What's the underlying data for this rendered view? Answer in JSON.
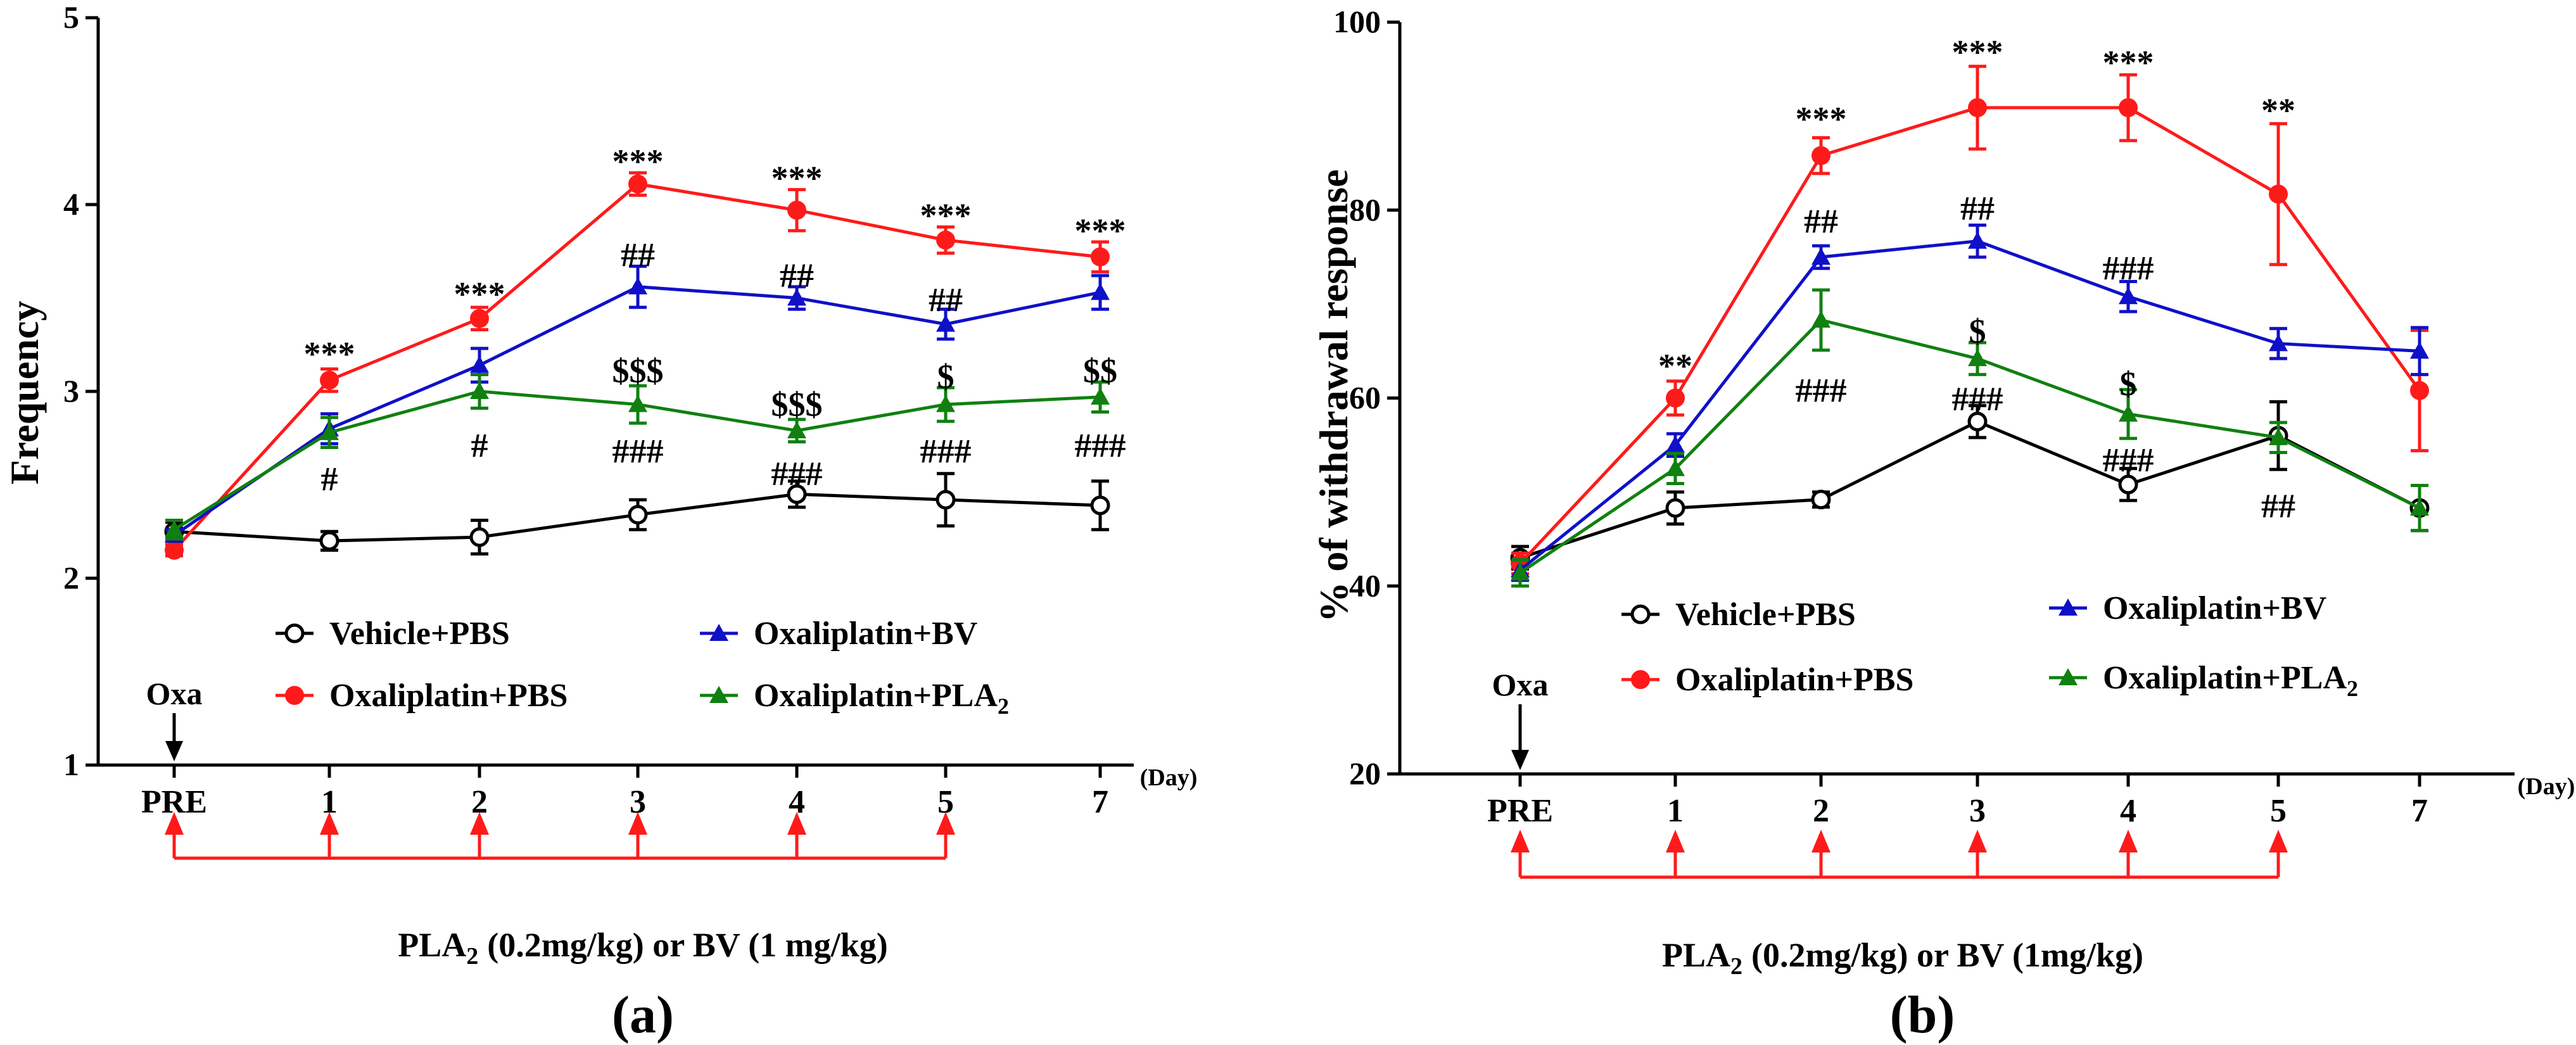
{
  "colors": {
    "vehicle": "#000000",
    "oxa_pbs": "#ff1a1a",
    "oxa_bv": "#1010c8",
    "oxa_pla2": "#108010",
    "treatment_arrow": "#ff1a1a"
  },
  "chart_data": [
    {
      "type": "line",
      "panel_label": "(a)",
      "ylabel": "Frequency",
      "xlabel_unit": "(Day)",
      "categories": [
        "PRE",
        "1",
        "2",
        "3",
        "4",
        "5",
        "7"
      ],
      "ylim": [
        1,
        5
      ],
      "yticks": [
        "1",
        "2",
        "3",
        "4",
        "5"
      ],
      "series": [
        {
          "key": "vehicle",
          "name": "Vehicle+PBS",
          "marker": "open-circle",
          "values": [
            2.25,
            2.2,
            2.22,
            2.34,
            2.45,
            2.42,
            2.39
          ],
          "errors": [
            0.05,
            0.05,
            0.09,
            0.08,
            0.07,
            0.14,
            0.13
          ]
        },
        {
          "key": "oxa_pbs",
          "name": "Oxaliplatin+PBS",
          "marker": "circle",
          "values": [
            2.15,
            3.06,
            3.39,
            4.11,
            3.97,
            3.81,
            3.72
          ],
          "errors": [
            0.03,
            0.06,
            0.06,
            0.06,
            0.11,
            0.07,
            0.08
          ]
        },
        {
          "key": "oxa_bv",
          "name": "Oxaliplatin+BV",
          "marker": "triangle",
          "values": [
            2.23,
            2.8,
            3.14,
            3.56,
            3.5,
            3.36,
            3.53
          ],
          "errors": [
            0.03,
            0.08,
            0.09,
            0.11,
            0.06,
            0.08,
            0.09
          ]
        },
        {
          "key": "oxa_pla2",
          "name": "Oxaliplatin+PLA2",
          "name_base": "Oxaliplatin+PLA",
          "name_sub": "2",
          "marker": "triangle",
          "values": [
            2.26,
            2.78,
            3.0,
            2.93,
            2.79,
            2.93,
            2.97
          ],
          "errors": [
            0.05,
            0.08,
            0.09,
            0.1,
            0.06,
            0.09,
            0.08
          ]
        }
      ],
      "annotations": [
        {
          "text": "***",
          "x": "1",
          "y": 3.2
        },
        {
          "text": "***",
          "x": "2",
          "y": 3.52
        },
        {
          "text": "***",
          "x": "3",
          "y": 4.23
        },
        {
          "text": "***",
          "x": "4",
          "y": 4.14
        },
        {
          "text": "***",
          "x": "5",
          "y": 3.94
        },
        {
          "text": "***",
          "x": "7",
          "y": 3.86
        },
        {
          "text": "##",
          "x": "3",
          "y": 3.73
        },
        {
          "text": "##",
          "x": "4",
          "y": 3.62
        },
        {
          "text": "##",
          "x": "5",
          "y": 3.49
        },
        {
          "text": "$$$",
          "x": "3",
          "y": 3.11
        },
        {
          "text": "$$$",
          "x": "4",
          "y": 2.93
        },
        {
          "text": "$",
          "x": "5",
          "y": 3.08
        },
        {
          "text": "$$",
          "x": "7",
          "y": 3.11
        },
        {
          "text": "#",
          "x": "1",
          "y": 2.53
        },
        {
          "text": "#",
          "x": "2",
          "y": 2.71
        },
        {
          "text": "###",
          "x": "3",
          "y": 2.68
        },
        {
          "text": "###",
          "x": "4",
          "y": 2.56
        },
        {
          "text": "###",
          "x": "5",
          "y": 2.68
        },
        {
          "text": "###",
          "x": "7",
          "y": 2.71
        }
      ],
      "oxa_label": "Oxa",
      "treatment_label": "(0.2mg/kg) or BV (1 mg/kg)",
      "treatment_label_prefix": "PLA",
      "treatment_label_sub": "2",
      "treatment_days": [
        "PRE",
        "1",
        "2",
        "3",
        "4",
        "5"
      ]
    },
    {
      "type": "line",
      "panel_label": "(b)",
      "ylabel": "% of withdrawal response",
      "xlabel_unit": "(Day)",
      "categories": [
        "PRE",
        "1",
        "2",
        "3",
        "4",
        "5",
        "7"
      ],
      "ylim": [
        20,
        100
      ],
      "yticks": [
        "20",
        "40",
        "60",
        "80",
        "100"
      ],
      "series": [
        {
          "key": "vehicle",
          "name": "Vehicle+PBS",
          "marker": "open-circle",
          "values": [
            43,
            48.3,
            49.2,
            57.5,
            50.8,
            56,
            48.3
          ],
          "errors": [
            1.2,
            1.7,
            0.8,
            1.7,
            1.7,
            3.6,
            2.4
          ]
        },
        {
          "key": "oxa_pbs",
          "name": "Oxaliplatin+PBS",
          "marker": "circle",
          "values": [
            42.4,
            60,
            85.8,
            90.9,
            90.9,
            81.7,
            60.8
          ],
          "errors": [
            1.1,
            1.8,
            1.9,
            4.4,
            3.5,
            7.5,
            6.4
          ]
        },
        {
          "key": "oxa_bv",
          "name": "Oxaliplatin+BV",
          "marker": "triangle",
          "values": [
            41.7,
            55,
            75,
            76.7,
            70.8,
            65.8,
            65
          ],
          "errors": [
            1.1,
            1.2,
            1.2,
            1.7,
            1.6,
            1.6,
            2.5
          ]
        },
        {
          "key": "oxa_pla2",
          "name": "Oxaliplatin+PLA2",
          "name_base": "Oxaliplatin+PLA",
          "name_sub": "2",
          "marker": "triangle",
          "values": [
            41.4,
            52.5,
            68.3,
            64.2,
            58.3,
            55.8,
            48.3
          ],
          "errors": [
            1.4,
            1.6,
            3.2,
            1.7,
            2.6,
            1.6,
            2.4
          ]
        }
      ],
      "annotations": [
        {
          "text": "**",
          "x": "1",
          "y": 63.4
        },
        {
          "text": "***",
          "x": "2",
          "y": 89.7
        },
        {
          "text": "***",
          "x": "3",
          "y": 96.8
        },
        {
          "text": "***",
          "x": "4",
          "y": 95.7
        },
        {
          "text": "**",
          "x": "5",
          "y": 90.6
        },
        {
          "text": "##",
          "x": "2",
          "y": 78.8
        },
        {
          "text": "##",
          "x": "3",
          "y": 80.2
        },
        {
          "text": "###",
          "x": "4",
          "y": 73.8
        },
        {
          "text": "$",
          "x": "3",
          "y": 67.1
        },
        {
          "text": "$",
          "x": "4",
          "y": 61.5
        },
        {
          "text": "###",
          "x": "2",
          "y": 60.8
        },
        {
          "text": "###",
          "x": "3",
          "y": 59.9
        },
        {
          "text": "###",
          "x": "4",
          "y": 53.4
        },
        {
          "text": "##",
          "x": "5",
          "y": 48.5
        }
      ],
      "oxa_label": "Oxa",
      "treatment_label": "(0.2mg/kg) or BV (1mg/kg)",
      "treatment_label_prefix": "PLA",
      "treatment_label_sub": "2",
      "treatment_days": [
        "PRE",
        "1",
        "2",
        "3",
        "4",
        "5"
      ]
    }
  ]
}
